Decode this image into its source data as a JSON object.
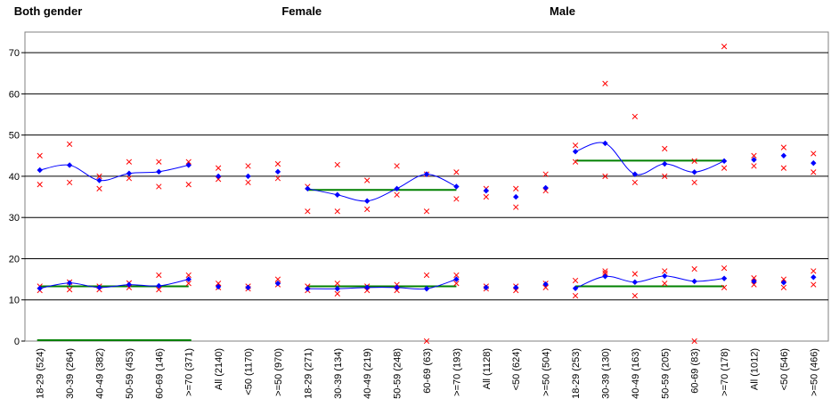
{
  "colors": {
    "mean": "#0000ff",
    "ci": "#ff0000",
    "reference": "#008000",
    "grid": "#000000"
  },
  "chart_data": {
    "type": "scatter",
    "ylim": [
      0,
      75
    ],
    "yticks": [
      0,
      10,
      20,
      30,
      40,
      50,
      60,
      70
    ],
    "grid": true,
    "panels": [
      {
        "title": "Both gender",
        "age_groups": [
          "18-29 (524)",
          "30-39 (264)",
          "40-49 (382)",
          "50-59 (453)",
          "60-69 (146)",
          ">=70 (371)"
        ],
        "summary_groups": [
          "All (2140)",
          "<50 (1170)",
          ">=50 (970)"
        ],
        "upper": {
          "age": {
            "mean": [
              41.5,
              42.7,
              39.0,
              40.7,
              41.1,
              42.7
            ],
            "ci_high": [
              45.0,
              47.8,
              40.0,
              43.5,
              43.5,
              43.5
            ],
            "ci_low": [
              38.0,
              38.5,
              37.0,
              39.5,
              37.5,
              38.0
            ],
            "reference": null
          },
          "summary": {
            "mean": [
              40.0,
              40.0,
              41.1
            ],
            "ci_high": [
              42.0,
              42.5,
              43.0
            ],
            "ci_low": [
              39.3,
              38.5,
              39.5
            ]
          }
        },
        "lower": {
          "age": {
            "mean": [
              12.8,
              14.1,
              13.0,
              13.7,
              13.4,
              15.0
            ],
            "ci_high": [
              13.3,
              14.3,
              13.3,
              14.1,
              16.0,
              16.0
            ],
            "ci_low": [
              12.3,
              12.5,
              12.5,
              13.0,
              12.5,
              14.0
            ],
            "reference": 13.3
          },
          "summary": {
            "mean": [
              13.2,
              13.0,
              14.0
            ],
            "ci_high": [
              14.0,
              13.3,
              15.0
            ],
            "ci_low": [
              13.0,
              12.7,
              13.7
            ]
          }
        },
        "baseline_reference": 0
      },
      {
        "title": "Female",
        "age_groups": [
          "18-29 (271)",
          "30-39 (134)",
          "40-49 (219)",
          "50-59 (248)",
          "60-69 (63)",
          ">=70 (193)"
        ],
        "summary_groups": [
          "All (1128)",
          "<50 (624)",
          ">=50 (504)"
        ],
        "upper": {
          "age": {
            "mean": [
              37.0,
              35.5,
              34.0,
              37.0,
              40.5,
              37.5
            ],
            "ci_high": [
              37.5,
              42.8,
              39.0,
              42.5,
              40.5,
              41.0
            ],
            "ci_low": [
              31.5,
              31.5,
              32.0,
              35.5,
              31.5,
              34.5
            ],
            "reference": 36.7
          },
          "summary": {
            "mean": [
              36.5,
              35.0,
              37.2
            ],
            "ci_high": [
              37.0,
              37.0,
              40.5
            ],
            "ci_low": [
              35.0,
              32.5,
              36.5
            ]
          }
        },
        "lower": {
          "age": {
            "mean": [
              12.7,
              12.7,
              13.0,
              13.0,
              12.7,
              15.0
            ],
            "ci_high": [
              13.3,
              14.0,
              13.3,
              13.7,
              16.0,
              16.0
            ],
            "ci_low": [
              12.3,
              11.5,
              12.3,
              12.3,
              0.0,
              14.0
            ],
            "reference": 13.3
          },
          "summary": {
            "mean": [
              13.0,
              13.0,
              13.8
            ],
            "ci_high": [
              13.3,
              13.3,
              14.0
            ],
            "ci_low": [
              12.7,
              12.3,
              13.0
            ]
          }
        },
        "baseline_reference": null
      },
      {
        "title": "Male",
        "age_groups": [
          "18-29 (253)",
          "30-39 (130)",
          "40-49 (163)",
          "50-59 (205)",
          "60-69 (83)",
          ">=70 (178)"
        ],
        "summary_groups": [
          "All (1012)",
          "<50 (546)",
          ">=50 (466)"
        ],
        "upper": {
          "age": {
            "mean": [
              46.0,
              48.0,
              40.5,
              43.0,
              41.0,
              43.7
            ],
            "ci_high": [
              47.5,
              62.5,
              54.5,
              46.7,
              43.7,
              71.5
            ],
            "ci_low": [
              43.5,
              40.0,
              38.5,
              40.0,
              38.5,
              42.0
            ],
            "reference": 43.8
          },
          "summary": {
            "mean": [
              44.0,
              45.0,
              43.2
            ],
            "ci_high": [
              45.0,
              47.0,
              45.5
            ],
            "ci_low": [
              42.5,
              42.0,
              41.0
            ]
          }
        },
        "lower": {
          "age": {
            "mean": [
              12.8,
              15.7,
              14.3,
              15.8,
              14.5,
              15.2
            ],
            "ci_high": [
              14.7,
              17.0,
              16.3,
              17.0,
              17.5,
              17.7
            ],
            "ci_low": [
              11.0,
              16.5,
              11.0,
              14.0,
              0.0,
              13.0
            ],
            "reference": 13.3
          },
          "summary": {
            "mean": [
              14.5,
              14.2,
              15.5
            ],
            "ci_high": [
              15.3,
              15.0,
              17.0
            ],
            "ci_low": [
              13.7,
              13.0,
              13.7
            ]
          }
        },
        "baseline_reference": null
      }
    ]
  }
}
